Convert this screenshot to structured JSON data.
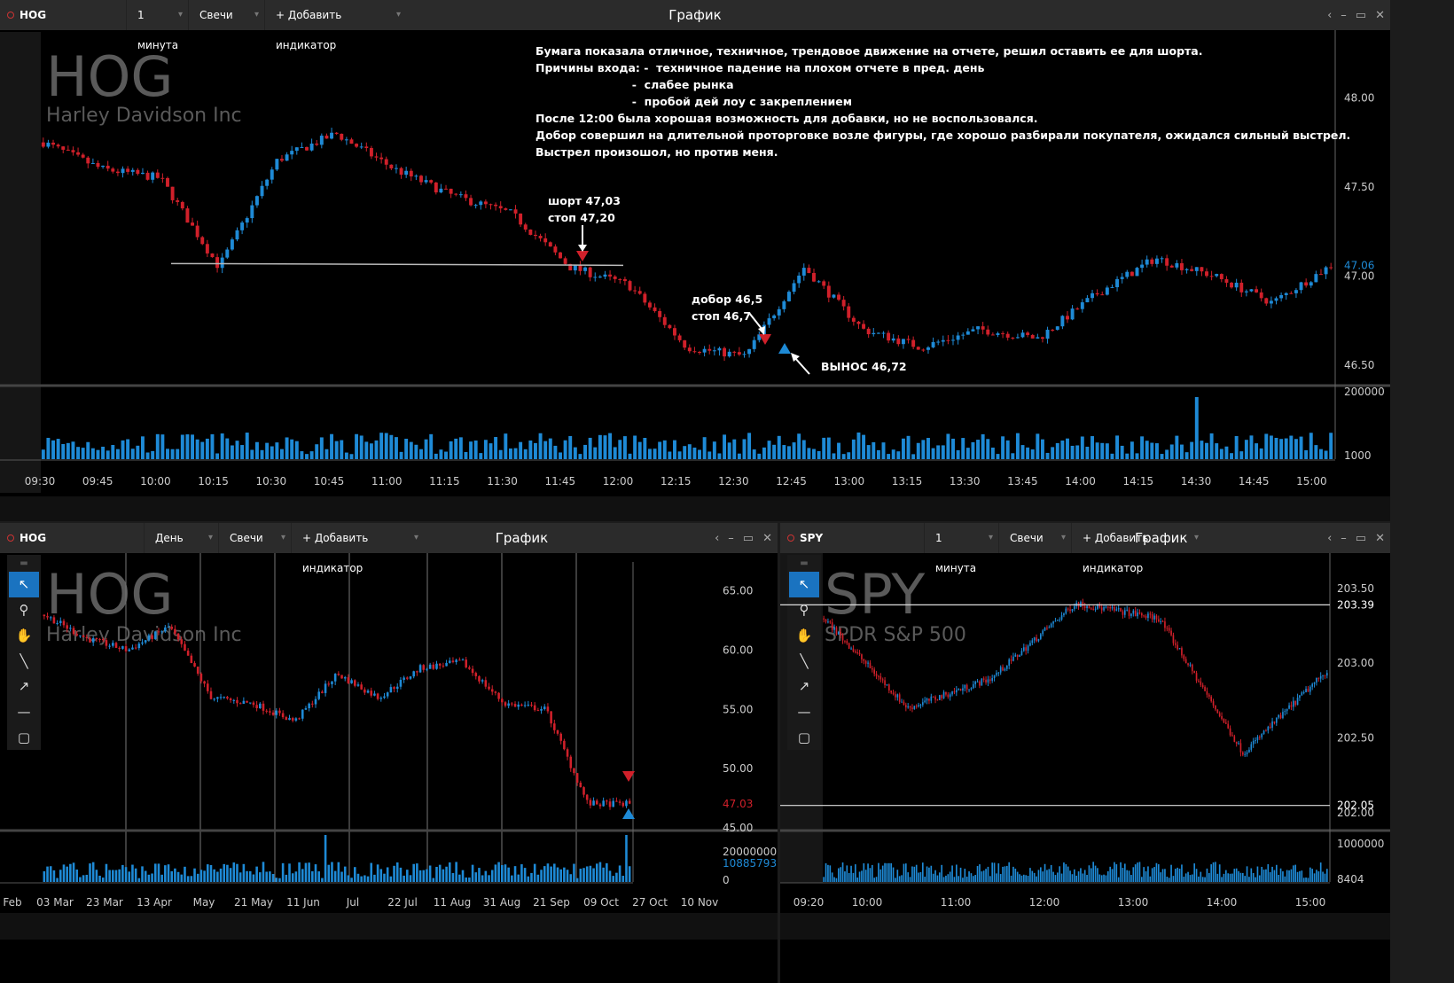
{
  "top": {
    "symbol": "HOG",
    "interval": "1 минута",
    "chart_type": "Свечи",
    "add_indicator": "+ Добавить индикатор",
    "title": "График",
    "watermark_symbol": "HOG",
    "watermark_name": "Harley Davidson Inc",
    "note": "Бумага показала отличное, техничное, трендовое движение на отчете, решил оставить ее для шорта.\nПричины входа: -  техничное падение на плохом отчете в пред. день\n                         -  слабее рынка\n                         -  пробой дей лоу с закреплением\nПосле 12:00 была хорошая возможность для добавки, но не воспользовался.\nДобор совершил на длительной проторговке возле фигуры, где хорошо разбирали покупателя, ожидался сильный выстрел.\nВыстрел произошол, но против меня.",
    "entry_label": "шорт 47,03\nстоп 47,20",
    "add_label": "добор 46,5\nстоп 46,7",
    "stop_label": "ВЫНОС 46,72",
    "price_labels": [
      "48.00",
      "47.50",
      "47.06",
      "47.00",
      "46.50"
    ],
    "volume_labels": [
      "200000",
      "1000"
    ],
    "time_labels": [
      "09:30",
      "09:45",
      "10:00",
      "10:15",
      "10:30",
      "10:45",
      "11:00",
      "11:15",
      "11:30",
      "11:45",
      "12:00",
      "12:15",
      "12:30",
      "12:45",
      "13:00",
      "13:15",
      "13:30",
      "13:45",
      "14:00",
      "14:15",
      "14:30",
      "14:45",
      "15:00"
    ]
  },
  "left": {
    "symbol": "HOG",
    "interval": "День",
    "chart_type": "Свечи",
    "add_indicator": "+ Добавить индикатор",
    "title": "График",
    "watermark_symbol": "HOG",
    "watermark_name": "Harley Davidson Inc",
    "price_labels": [
      "65.00",
      "60.00",
      "55.00",
      "50.00",
      "47.03",
      "45.00"
    ],
    "volume_labels": [
      "20000000",
      "10885793",
      "0"
    ],
    "time_labels": [
      "Feb",
      "03 Mar",
      "23 Mar",
      "13 Apr",
      "May",
      "21 May",
      "11 Jun",
      "Jul",
      "22 Jul",
      "11 Aug",
      "31 Aug",
      "21 Sep",
      "09 Oct",
      "27 Oct",
      "10 Nov"
    ]
  },
  "right": {
    "symbol": "SPY",
    "interval": "1 минута",
    "chart_type": "Свечи",
    "add_indicator": "+ Добавить индикатор",
    "title": "График",
    "watermark_symbol": "SPY",
    "watermark_name": "SPDR S&P 500",
    "price_labels": [
      "203.50",
      "203.39",
      "203.00",
      "202.50",
      "202.05",
      "202.00"
    ],
    "volume_labels": [
      "1000000",
      "8404"
    ],
    "time_labels": [
      "09:20",
      "10:00",
      "11:00",
      "12:00",
      "13:00",
      "14:00",
      "15:00"
    ]
  },
  "colors": {
    "up": "#1e8ad6",
    "down": "#d0202a",
    "bg": "#000000",
    "header": "#2b2b2b"
  },
  "chart_data": [
    {
      "type": "candlestick",
      "title": "HOG 1 минута",
      "x": [
        "09:30",
        "09:45",
        "10:00",
        "10:15",
        "10:30",
        "10:45",
        "11:00",
        "11:15",
        "11:30",
        "11:45",
        "12:00",
        "12:15",
        "12:30",
        "12:45",
        "13:00",
        "13:15",
        "13:30",
        "13:45",
        "14:00",
        "14:15",
        "14:30",
        "14:45",
        "15:00"
      ],
      "close": [
        47.75,
        47.6,
        47.55,
        47.05,
        47.65,
        47.8,
        47.6,
        47.45,
        47.35,
        47.05,
        46.95,
        46.6,
        46.55,
        47.05,
        46.7,
        46.6,
        46.7,
        46.65,
        46.9,
        47.1,
        47.0,
        46.85,
        47.06
      ],
      "ylim": [
        46.4,
        48.35
      ],
      "annotations": [
        "шорт 47,03",
        "стоп 47,20",
        "добор 46,5",
        "стоп 46,7",
        "ВЫНОС 46,72"
      ]
    },
    {
      "type": "candlestick",
      "title": "HOG День",
      "x": [
        "Feb",
        "03 Mar",
        "23 Mar",
        "13 Apr",
        "May",
        "21 May",
        "11 Jun",
        "Jul",
        "22 Jul",
        "11 Aug",
        "31 Aug",
        "21 Sep",
        "09 Oct",
        "27 Oct",
        "10 Nov"
      ],
      "close": [
        63,
        61,
        60,
        62,
        56,
        55.5,
        54,
        58,
        56,
        58.5,
        59,
        55.5,
        55,
        47.03,
        47.03
      ],
      "ylim": [
        45,
        67
      ]
    },
    {
      "type": "candlestick",
      "title": "SPY 1 минута",
      "x": [
        "09:20",
        "10:00",
        "11:00",
        "12:00",
        "13:00",
        "14:00",
        "15:00"
      ],
      "close": [
        203.3,
        202.7,
        202.9,
        203.4,
        203.3,
        202.4,
        202.95
      ],
      "ylim": [
        201.9,
        203.7
      ]
    }
  ]
}
